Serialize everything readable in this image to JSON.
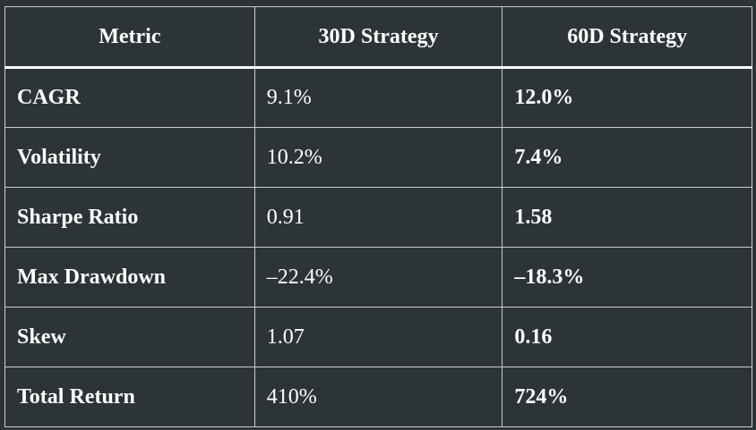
{
  "table": {
    "header": [
      "Metric",
      "30D Strategy",
      "60D Strategy"
    ],
    "rows": [
      [
        "CAGR",
        "9.1%",
        "12.0%"
      ],
      [
        "Volatility",
        "10.2%",
        "7.4%"
      ],
      [
        "Sharpe Ratio",
        "0.91",
        "1.58"
      ],
      [
        "Max Drawdown",
        "–22.4%",
        "–18.3%"
      ],
      [
        "Skew",
        "1.07",
        "0.16"
      ],
      [
        "Total Return",
        "410%",
        "724%"
      ]
    ]
  }
}
